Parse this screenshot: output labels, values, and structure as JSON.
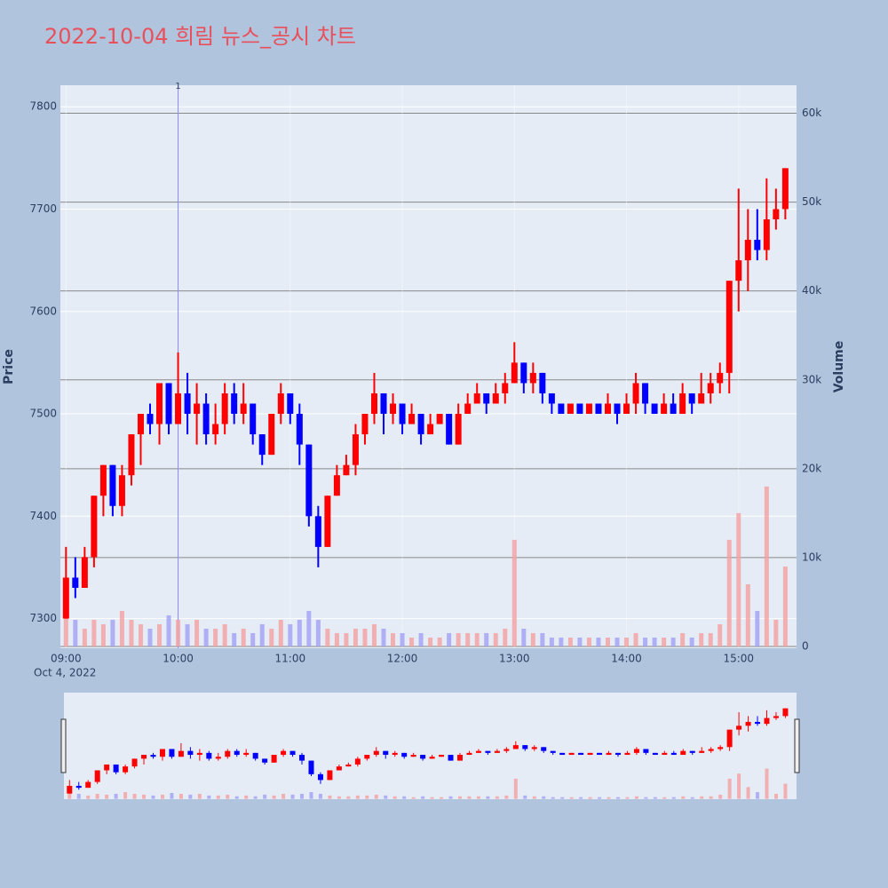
{
  "chart_data": {
    "type": "candlestick",
    "title": "2022-10-04 희림 뉴스_공시 차트",
    "y_axis_label": "Price",
    "y2_axis_label": "Volume",
    "x_date_label": "Oct 4, 2022",
    "increasing_color": "#ff0000",
    "decreasing_color": "#0000ff",
    "volume_increasing_color": "#f4a0a0",
    "volume_decreasing_color": "#a0a0f4",
    "xlim": [
      "08:57",
      "15:31"
    ],
    "xticks": [
      "09:00",
      "10:00",
      "11:00",
      "12:00",
      "13:00",
      "14:00",
      "15:00"
    ],
    "ylim": [
      7271,
      7821
    ],
    "yticks": [
      7300,
      7400,
      7500,
      7600,
      7700,
      7800
    ],
    "y2lim": [
      -200,
      63150
    ],
    "y2ticks": [
      0,
      {
        "value": 10000,
        "label": "10k"
      },
      {
        "value": 20000,
        "label": "20k"
      },
      {
        "value": 30000,
        "label": "30k"
      },
      {
        "value": 40000,
        "label": "40k"
      },
      {
        "value": 50000,
        "label": "50k"
      },
      {
        "value": 60000,
        "label": "60k"
      }
    ],
    "annotation": {
      "text": "1",
      "x": "10:00"
    },
    "x": [
      "09:00",
      "09:05",
      "09:10",
      "09:15",
      "09:20",
      "09:25",
      "09:30",
      "09:35",
      "09:40",
      "09:45",
      "09:50",
      "09:55",
      "10:00",
      "10:05",
      "10:10",
      "10:15",
      "10:20",
      "10:25",
      "10:30",
      "10:35",
      "10:40",
      "10:45",
      "10:50",
      "10:55",
      "11:00",
      "11:05",
      "11:10",
      "11:15",
      "11:20",
      "11:25",
      "11:30",
      "11:35",
      "11:40",
      "11:45",
      "11:50",
      "11:55",
      "12:00",
      "12:05",
      "12:10",
      "12:15",
      "12:20",
      "12:25",
      "12:30",
      "12:35",
      "12:40",
      "12:45",
      "12:50",
      "12:55",
      "13:00",
      "13:05",
      "13:10",
      "13:15",
      "13:20",
      "13:25",
      "13:30",
      "13:35",
      "13:40",
      "13:45",
      "13:50",
      "13:55",
      "14:00",
      "14:05",
      "14:10",
      "14:15",
      "14:20",
      "14:25",
      "14:30",
      "14:35",
      "14:40",
      "14:45",
      "14:50",
      "14:55",
      "15:00",
      "15:05",
      "15:10",
      "15:15",
      "15:20",
      "15:25"
    ],
    "open": [
      7300,
      7340,
      7330,
      7360,
      7420,
      7450,
      7410,
      7440,
      7480,
      7500,
      7490,
      7530,
      7490,
      7520,
      7500,
      7510,
      7480,
      7490,
      7520,
      7500,
      7510,
      7480,
      7460,
      7500,
      7520,
      7500,
      7470,
      7400,
      7370,
      7420,
      7440,
      7450,
      7480,
      7500,
      7520,
      7500,
      7510,
      7490,
      7500,
      7480,
      7490,
      7500,
      7470,
      7500,
      7510,
      7520,
      7510,
      7520,
      7530,
      7550,
      7530,
      7540,
      7520,
      7510,
      7500,
      7510,
      7500,
      7510,
      7500,
      7510,
      7500,
      7510,
      7530,
      7510,
      7500,
      7510,
      7500,
      7520,
      7510,
      7520,
      7530,
      7540,
      7630,
      7650,
      7670,
      7660,
      7690,
      7700
    ],
    "high": [
      7370,
      7360,
      7370,
      7420,
      7450,
      7450,
      7450,
      7480,
      7500,
      7510,
      7530,
      7530,
      7560,
      7540,
      7530,
      7520,
      7510,
      7530,
      7530,
      7530,
      7510,
      7480,
      7500,
      7530,
      7520,
      7510,
      7470,
      7410,
      7420,
      7450,
      7460,
      7490,
      7500,
      7540,
      7520,
      7520,
      7510,
      7510,
      7500,
      7500,
      7500,
      7500,
      7510,
      7520,
      7530,
      7520,
      7530,
      7540,
      7570,
      7550,
      7550,
      7540,
      7520,
      7510,
      7510,
      7510,
      7510,
      7510,
      7520,
      7510,
      7520,
      7540,
      7530,
      7510,
      7520,
      7520,
      7530,
      7520,
      7540,
      7540,
      7550,
      7630,
      7720,
      7700,
      7700,
      7730,
      7720,
      7740
    ],
    "low": [
      7300,
      7320,
      7330,
      7350,
      7400,
      7400,
      7400,
      7430,
      7450,
      7480,
      7470,
      7480,
      7490,
      7480,
      7470,
      7470,
      7470,
      7480,
      7490,
      7490,
      7470,
      7450,
      7460,
      7490,
      7490,
      7450,
      7390,
      7350,
      7370,
      7420,
      7440,
      7440,
      7470,
      7490,
      7480,
      7490,
      7480,
      7490,
      7470,
      7480,
      7490,
      7470,
      7470,
      7500,
      7510,
      7500,
      7510,
      7510,
      7530,
      7520,
      7520,
      7510,
      7500,
      7500,
      7500,
      7500,
      7500,
      7500,
      7500,
      7490,
      7500,
      7500,
      7500,
      7500,
      7500,
      7500,
      7500,
      7500,
      7510,
      7510,
      7520,
      7520,
      7600,
      7620,
      7650,
      7650,
      7680,
      7690
    ],
    "close": [
      7340,
      7330,
      7360,
      7420,
      7450,
      7410,
      7440,
      7480,
      7500,
      7490,
      7530,
      7490,
      7520,
      7500,
      7510,
      7480,
      7490,
      7520,
      7500,
      7510,
      7480,
      7460,
      7500,
      7520,
      7500,
      7470,
      7400,
      7370,
      7420,
      7440,
      7450,
      7480,
      7500,
      7520,
      7500,
      7510,
      7490,
      7500,
      7480,
      7490,
      7500,
      7470,
      7500,
      7510,
      7520,
      7510,
      7520,
      7530,
      7550,
      7530,
      7540,
      7520,
      7510,
      7500,
      7510,
      7500,
      7510,
      7500,
      7510,
      7500,
      7510,
      7530,
      7510,
      7500,
      7510,
      7500,
      7520,
      7510,
      7520,
      7530,
      7540,
      7630,
      7650,
      7670,
      7660,
      7690,
      7700,
      7740
    ],
    "volume": [
      6000,
      3000,
      2000,
      3000,
      2500,
      3000,
      4000,
      3000,
      2500,
      2000,
      2500,
      3500,
      3000,
      2500,
      3000,
      2000,
      2000,
      2500,
      1500,
      2000,
      1500,
      2500,
      2000,
      3000,
      2500,
      3000,
      4000,
      3000,
      2000,
      1500,
      1500,
      2000,
      2000,
      2500,
      2000,
      1500,
      1500,
      1000,
      1500,
      1000,
      1000,
      1500,
      1500,
      1500,
      1500,
      1500,
      1500,
      2000,
      12000,
      2000,
      1500,
      1500,
      1000,
      1000,
      1000,
      1000,
      1000,
      1000,
      1000,
      1000,
      1000,
      1500,
      1000,
      1000,
      1000,
      1000,
      1500,
      1000,
      1500,
      1500,
      2500,
      12000,
      15000,
      7000,
      4000,
      18000,
      3000,
      9000
    ]
  }
}
